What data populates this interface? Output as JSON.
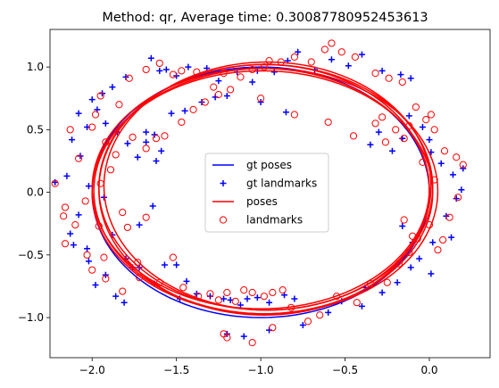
{
  "chart_data": {
    "type": "scatter",
    "title": "Method: qr, Average time: 0.30087780952453613",
    "xlabel": "",
    "ylabel": "",
    "xlim": [
      -2.25,
      0.36
    ],
    "ylim": [
      -1.32,
      1.3
    ],
    "xticks": [
      -2.0,
      -1.5,
      -1.0,
      -0.5,
      0.0
    ],
    "xtick_labels": [
      "−2.0",
      "−1.5",
      "−1.0",
      "−0.5",
      "0.0"
    ],
    "yticks": [
      -1.0,
      -0.5,
      0.0,
      0.5,
      1.0
    ],
    "ytick_labels": [
      "−1.0",
      "−0.5",
      "0.0",
      "0.5",
      "1.0"
    ],
    "grid": false,
    "legend_position": "center",
    "legend": [
      {
        "label": "gt poses",
        "style": "line",
        "color": "#0000ff"
      },
      {
        "label": "gt landmarks",
        "style": "plus",
        "color": "#0000ff"
      },
      {
        "label": "poses",
        "style": "line",
        "color": "#ff0000"
      },
      {
        "label": "landmarks",
        "style": "circle",
        "color": "#ff0000"
      }
    ],
    "gt_poses": {
      "name": "gt poses",
      "color": "#0000ff",
      "ellipse": {
        "cx": -1.0,
        "cy": 0.0,
        "rx": 1.0,
        "ry": 1.0
      }
    },
    "poses_loops": [
      {
        "cx": -0.98,
        "cy": 0.02,
        "rx": 0.98,
        "ry": 1.0
      },
      {
        "cx": -0.97,
        "cy": 0.04,
        "rx": 0.99,
        "ry": 0.98
      },
      {
        "cx": -0.99,
        "cy": 0.0,
        "rx": 1.01,
        "ry": 0.97
      },
      {
        "cx": -0.96,
        "cy": 0.05,
        "rx": 0.97,
        "ry": 0.99
      },
      {
        "cx": -1.0,
        "cy": 0.03,
        "rx": 1.0,
        "ry": 0.96
      },
      {
        "cx": -0.97,
        "cy": 0.01,
        "rx": 1.02,
        "ry": 0.98
      }
    ],
    "gt_landmarks": {
      "name": "gt landmarks",
      "color": "#0000ff",
      "points": [
        [
          -2.22,
          0.08
        ],
        [
          -2.15,
          0.13
        ],
        [
          -2.12,
          0.42
        ],
        [
          -2.03,
          0.52
        ],
        [
          -2.07,
          0.29
        ],
        [
          -2.02,
          0.05
        ],
        [
          -2.08,
          -0.18
        ],
        [
          -2.13,
          -0.33
        ],
        [
          -2.11,
          -0.42
        ],
        [
          -2.03,
          -0.45
        ],
        [
          -2.02,
          -0.55
        ],
        [
          -1.98,
          -0.74
        ],
        [
          -1.92,
          -0.66
        ],
        [
          -1.86,
          -0.83
        ],
        [
          -1.81,
          -0.88
        ],
        [
          -1.8,
          -0.53
        ],
        [
          -1.76,
          -0.6
        ],
        [
          -1.72,
          -0.6
        ],
        [
          -1.63,
          -0.73
        ],
        [
          -1.57,
          -0.58
        ],
        [
          -1.5,
          -0.58
        ],
        [
          -1.44,
          -0.71
        ],
        [
          -1.48,
          -0.85
        ],
        [
          -1.38,
          -0.81
        ],
        [
          -1.3,
          -0.83
        ],
        [
          -1.22,
          -0.85
        ],
        [
          -1.18,
          -0.86
        ],
        [
          -1.12,
          -0.9
        ],
        [
          -1.08,
          -0.85
        ],
        [
          -1.02,
          -0.84
        ],
        [
          -0.95,
          -0.88
        ],
        [
          -0.86,
          -0.82
        ],
        [
          -0.8,
          -0.85
        ],
        [
          -0.75,
          -1.06
        ],
        [
          -0.6,
          -0.96
        ],
        [
          -0.52,
          -0.87
        ],
        [
          -0.4,
          -0.91
        ],
        [
          -0.38,
          -0.76
        ],
        [
          -0.28,
          -0.8
        ],
        [
          -0.19,
          -0.72
        ],
        [
          -0.11,
          -0.6
        ],
        [
          -0.06,
          -0.53
        ],
        [
          0.02,
          -0.4
        ],
        [
          0.01,
          -0.65
        ],
        [
          0.13,
          -0.36
        ],
        [
          0.1,
          -0.19
        ],
        [
          0.16,
          -0.05
        ],
        [
          0.19,
          0.02
        ],
        [
          0.2,
          0.19
        ],
        [
          0.14,
          0.14
        ],
        [
          0.07,
          0.23
        ],
        [
          0.01,
          0.32
        ],
        [
          0.0,
          0.42
        ],
        [
          -0.04,
          0.52
        ],
        [
          -0.12,
          0.61
        ],
        [
          -0.16,
          0.43
        ],
        [
          -0.22,
          0.33
        ],
        [
          -0.3,
          0.48
        ],
        [
          -0.35,
          0.38
        ],
        [
          -0.11,
          0.91
        ],
        [
          -0.17,
          0.94
        ],
        [
          -0.28,
          0.97
        ],
        [
          -0.4,
          1.1
        ],
        [
          -0.48,
          1.01
        ],
        [
          -0.58,
          1.06
        ],
        [
          -0.68,
          0.98
        ],
        [
          -0.78,
          1.12
        ],
        [
          -0.84,
          1.05
        ],
        [
          -0.92,
          0.96
        ],
        [
          -1.02,
          0.97
        ],
        [
          -1.05,
          0.88
        ],
        [
          -1.14,
          0.96
        ],
        [
          -1.25,
          0.89
        ],
        [
          -1.32,
          0.99
        ],
        [
          -1.43,
          1.0
        ],
        [
          -1.5,
          0.93
        ],
        [
          -1.56,
          0.98
        ],
        [
          -1.65,
          1.07
        ],
        [
          -1.6,
          0.97
        ],
        [
          -1.8,
          0.92
        ],
        [
          -1.88,
          0.84
        ],
        [
          -1.94,
          0.79
        ],
        [
          -1.97,
          0.66
        ],
        [
          -2.0,
          0.74
        ],
        [
          -2.08,
          0.63
        ],
        [
          -1.92,
          0.55
        ],
        [
          -1.85,
          0.48
        ],
        [
          -1.79,
          0.39
        ],
        [
          -1.68,
          0.48
        ],
        [
          -1.63,
          0.46
        ],
        [
          -1.59,
          0.33
        ],
        [
          -1.73,
          0.28
        ],
        [
          -1.68,
          0.4
        ],
        [
          -1.53,
          0.63
        ],
        [
          -1.45,
          0.65
        ],
        [
          -1.35,
          0.72
        ],
        [
          -1.27,
          0.76
        ],
        [
          -1.2,
          0.77
        ],
        [
          -0.85,
          0.64
        ],
        [
          -1.0,
          0.72
        ],
        [
          -1.64,
          -0.11
        ],
        [
          -1.72,
          -0.26
        ],
        [
          -1.88,
          -0.34
        ],
        [
          -1.93,
          -0.04
        ],
        [
          -1.62,
          0.25
        ],
        [
          -1.2,
          -1.13
        ],
        [
          -1.1,
          -1.15
        ],
        [
          -0.95,
          -1.1
        ],
        [
          -0.1,
          -0.4
        ],
        [
          -0.16,
          -0.27
        ]
      ]
    },
    "landmarks": {
      "name": "landmarks",
      "color": "#ff0000",
      "points": [
        [
          -2.22,
          0.07
        ],
        [
          -2.13,
          0.5
        ],
        [
          -2.08,
          0.27
        ],
        [
          -2.16,
          -0.12
        ],
        [
          -2.04,
          -0.07
        ],
        [
          -2.1,
          -0.26
        ],
        [
          -2.17,
          -0.19
        ],
        [
          -2.16,
          -0.41
        ],
        [
          -2.03,
          -0.5
        ],
        [
          -2.0,
          -0.62
        ],
        [
          -1.93,
          -0.52
        ],
        [
          -1.92,
          -0.69
        ],
        [
          -1.82,
          -0.79
        ],
        [
          -1.73,
          -0.56
        ],
        [
          -1.72,
          -0.68
        ],
        [
          -1.6,
          -0.72
        ],
        [
          -1.52,
          -0.52
        ],
        [
          -1.46,
          -0.76
        ],
        [
          -1.37,
          -0.83
        ],
        [
          -1.3,
          -0.81
        ],
        [
          -1.25,
          -0.86
        ],
        [
          -1.2,
          -0.8
        ],
        [
          -1.15,
          -0.87
        ],
        [
          -1.1,
          -0.78
        ],
        [
          -1.05,
          -0.8
        ],
        [
          -0.98,
          -0.83
        ],
        [
          -0.93,
          -0.8
        ],
        [
          -0.87,
          -0.78
        ],
        [
          -0.82,
          -0.92
        ],
        [
          -0.72,
          -1.03
        ],
        [
          -0.65,
          -0.98
        ],
        [
          -0.55,
          -0.83
        ],
        [
          -0.43,
          -0.88
        ],
        [
          -0.35,
          -0.73
        ],
        [
          -0.25,
          -0.72
        ],
        [
          -0.18,
          -0.57
        ],
        [
          -0.12,
          -0.48
        ],
        [
          -0.07,
          -0.37
        ],
        [
          0.0,
          -0.26
        ],
        [
          0.05,
          -0.46
        ],
        [
          0.08,
          -0.38
        ],
        [
          0.12,
          -0.2
        ],
        [
          0.17,
          -0.04
        ],
        [
          0.2,
          0.22
        ],
        [
          0.16,
          0.28
        ],
        [
          0.09,
          0.33
        ],
        [
          0.03,
          0.5
        ],
        [
          -0.02,
          0.58
        ],
        [
          0.01,
          0.62
        ],
        [
          -0.08,
          0.68
        ],
        [
          -0.12,
          0.53
        ],
        [
          -0.2,
          0.5
        ],
        [
          -0.26,
          0.4
        ],
        [
          -0.32,
          0.55
        ],
        [
          -0.16,
          0.88
        ],
        [
          -0.24,
          0.91
        ],
        [
          -0.32,
          0.95
        ],
        [
          -0.44,
          1.08
        ],
        [
          -0.52,
          1.12
        ],
        [
          -0.58,
          1.19
        ],
        [
          -0.62,
          1.14
        ],
        [
          -0.7,
          1.04
        ],
        [
          -0.8,
          1.08
        ],
        [
          -0.88,
          1.04
        ],
        [
          -0.95,
          1.05
        ],
        [
          -1.05,
          0.98
        ],
        [
          -1.12,
          0.92
        ],
        [
          -1.22,
          0.95
        ],
        [
          -1.28,
          0.84
        ],
        [
          -1.38,
          0.96
        ],
        [
          -1.47,
          0.97
        ],
        [
          -1.52,
          0.94
        ],
        [
          -1.6,
          1.03
        ],
        [
          -1.68,
          0.98
        ],
        [
          -1.78,
          0.91
        ],
        [
          -1.84,
          0.7
        ],
        [
          -1.95,
          0.77
        ],
        [
          -1.98,
          0.62
        ],
        [
          -2.0,
          0.52
        ],
        [
          -1.92,
          0.4
        ],
        [
          -1.86,
          0.3
        ],
        [
          -1.76,
          0.44
        ],
        [
          -1.68,
          0.35
        ],
        [
          -1.62,
          0.43
        ],
        [
          -1.57,
          0.45
        ],
        [
          -1.47,
          0.56
        ],
        [
          -1.4,
          0.66
        ],
        [
          -1.33,
          0.72
        ],
        [
          -1.25,
          0.78
        ],
        [
          -1.18,
          0.82
        ],
        [
          -0.8,
          0.62
        ],
        [
          -1.0,
          0.75
        ],
        [
          -0.98,
          1.0
        ],
        [
          -1.68,
          -0.2
        ],
        [
          -1.82,
          -0.16
        ],
        [
          -1.79,
          -0.28
        ],
        [
          -1.96,
          -0.27
        ],
        [
          -1.95,
          0.07
        ],
        [
          -1.89,
          0.18
        ],
        [
          -1.22,
          -1.13
        ],
        [
          -1.2,
          -1.16
        ],
        [
          -1.05,
          -1.2
        ],
        [
          -0.93,
          -1.08
        ],
        [
          -0.1,
          -0.35
        ],
        [
          -0.15,
          -0.22
        ],
        [
          -0.28,
          0.6
        ],
        [
          -0.15,
          0.43
        ],
        [
          -0.04,
          0.24
        ],
        [
          0.03,
          0.1
        ],
        [
          -0.45,
          0.45
        ],
        [
          -0.6,
          0.56
        ]
      ]
    }
  }
}
